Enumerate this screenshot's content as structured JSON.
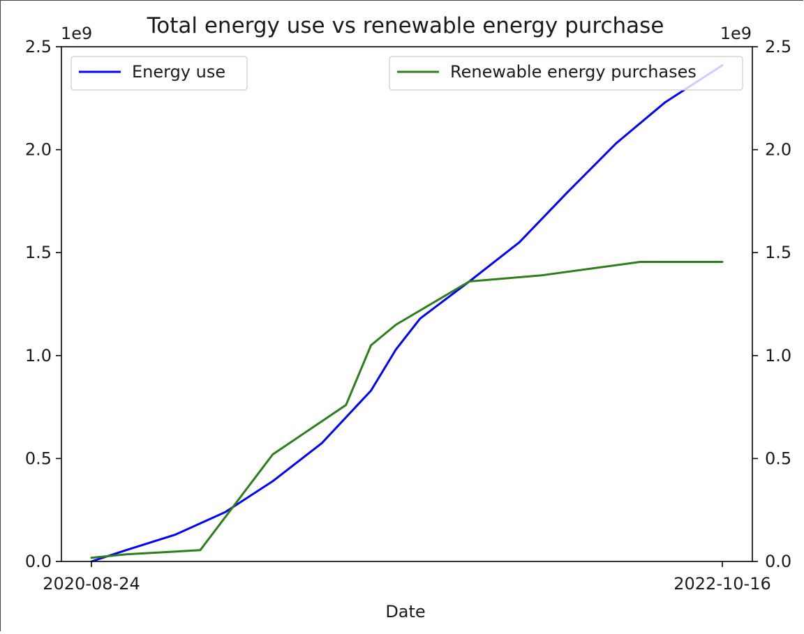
{
  "chart_data": {
    "type": "line",
    "title": "Total energy use vs renewable energy purchase",
    "xlabel": "Date",
    "x_tick_labels": [
      "2020-08-24",
      "2022-10-16"
    ],
    "x_start": "2020-08-24",
    "x_end": "2022-10-16",
    "left_axis": {
      "ylim": [
        0,
        2500000000
      ],
      "tick_labels": [
        "0.0",
        "0.5",
        "1.0",
        "1.5",
        "2.0",
        "2.5"
      ],
      "tick_values": [
        0,
        500000000,
        1000000000,
        1500000000,
        2000000000,
        2500000000
      ],
      "offset_label": "1e9"
    },
    "right_axis": {
      "ylim": [
        0,
        2500000000
      ],
      "tick_labels": [
        "0.0",
        "0.5",
        "1.0",
        "1.5",
        "2.0",
        "2.5"
      ],
      "tick_values": [
        0,
        500000000,
        1000000000,
        1500000000,
        2000000000,
        2500000000
      ],
      "offset_label": "1e9"
    },
    "grid": false,
    "series": [
      {
        "name": "Energy use",
        "axis": "left",
        "color": "#0000ff",
        "legend_position": "upper left",
        "x": [
          "2020-08-24",
          "2020-10-06",
          "2020-12-06",
          "2021-02-06",
          "2021-04-06",
          "2021-06-06",
          "2021-08-06",
          "2021-09-06",
          "2021-10-06",
          "2021-12-06",
          "2022-02-06",
          "2022-04-06",
          "2022-06-06",
          "2022-08-06",
          "2022-10-16"
        ],
        "y": [
          0,
          55000000,
          130000000,
          240000000,
          390000000,
          575000000,
          830000000,
          1030000000,
          1180000000,
          1360000000,
          1550000000,
          1790000000,
          2030000000,
          2230000000,
          2410000000
        ]
      },
      {
        "name": "Renewable energy purchases",
        "axis": "right",
        "color": "#2c7f18",
        "legend_position": "upper right",
        "x": [
          "2020-08-24",
          "2020-10-06",
          "2021-01-06",
          "2021-04-06",
          "2021-07-06",
          "2021-08-06",
          "2021-09-06",
          "2021-12-06",
          "2022-03-06",
          "2022-07-06",
          "2022-10-16"
        ],
        "y": [
          18000000,
          35000000,
          55000000,
          520000000,
          760000000,
          1050000000,
          1150000000,
          1360000000,
          1390000000,
          1455000000,
          1455000000
        ]
      }
    ]
  }
}
